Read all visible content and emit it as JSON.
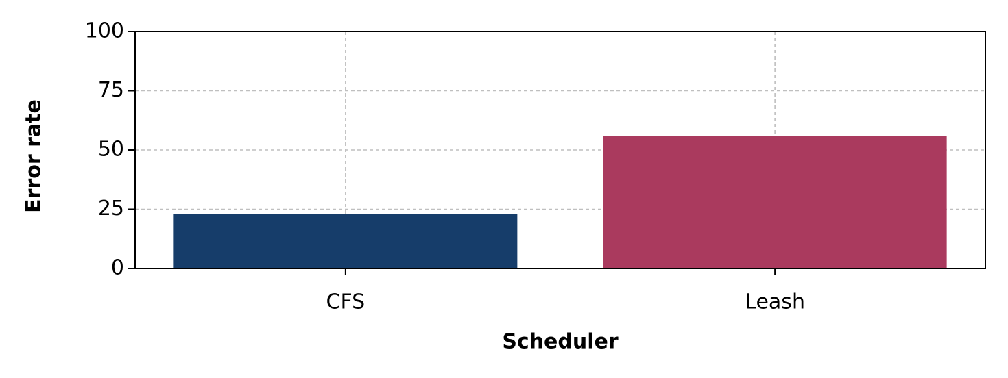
{
  "chart_data": {
    "type": "bar",
    "x_label": "Scheduler",
    "y_label": "Error rate",
    "categories": [
      "CFS",
      "Leash"
    ],
    "values": [
      23,
      56
    ],
    "colors": [
      "#163d6a",
      "#aa3a5e"
    ],
    "ylim": [
      0,
      100
    ],
    "yticks": [
      0,
      25,
      50,
      75,
      100
    ],
    "grid": true
  }
}
